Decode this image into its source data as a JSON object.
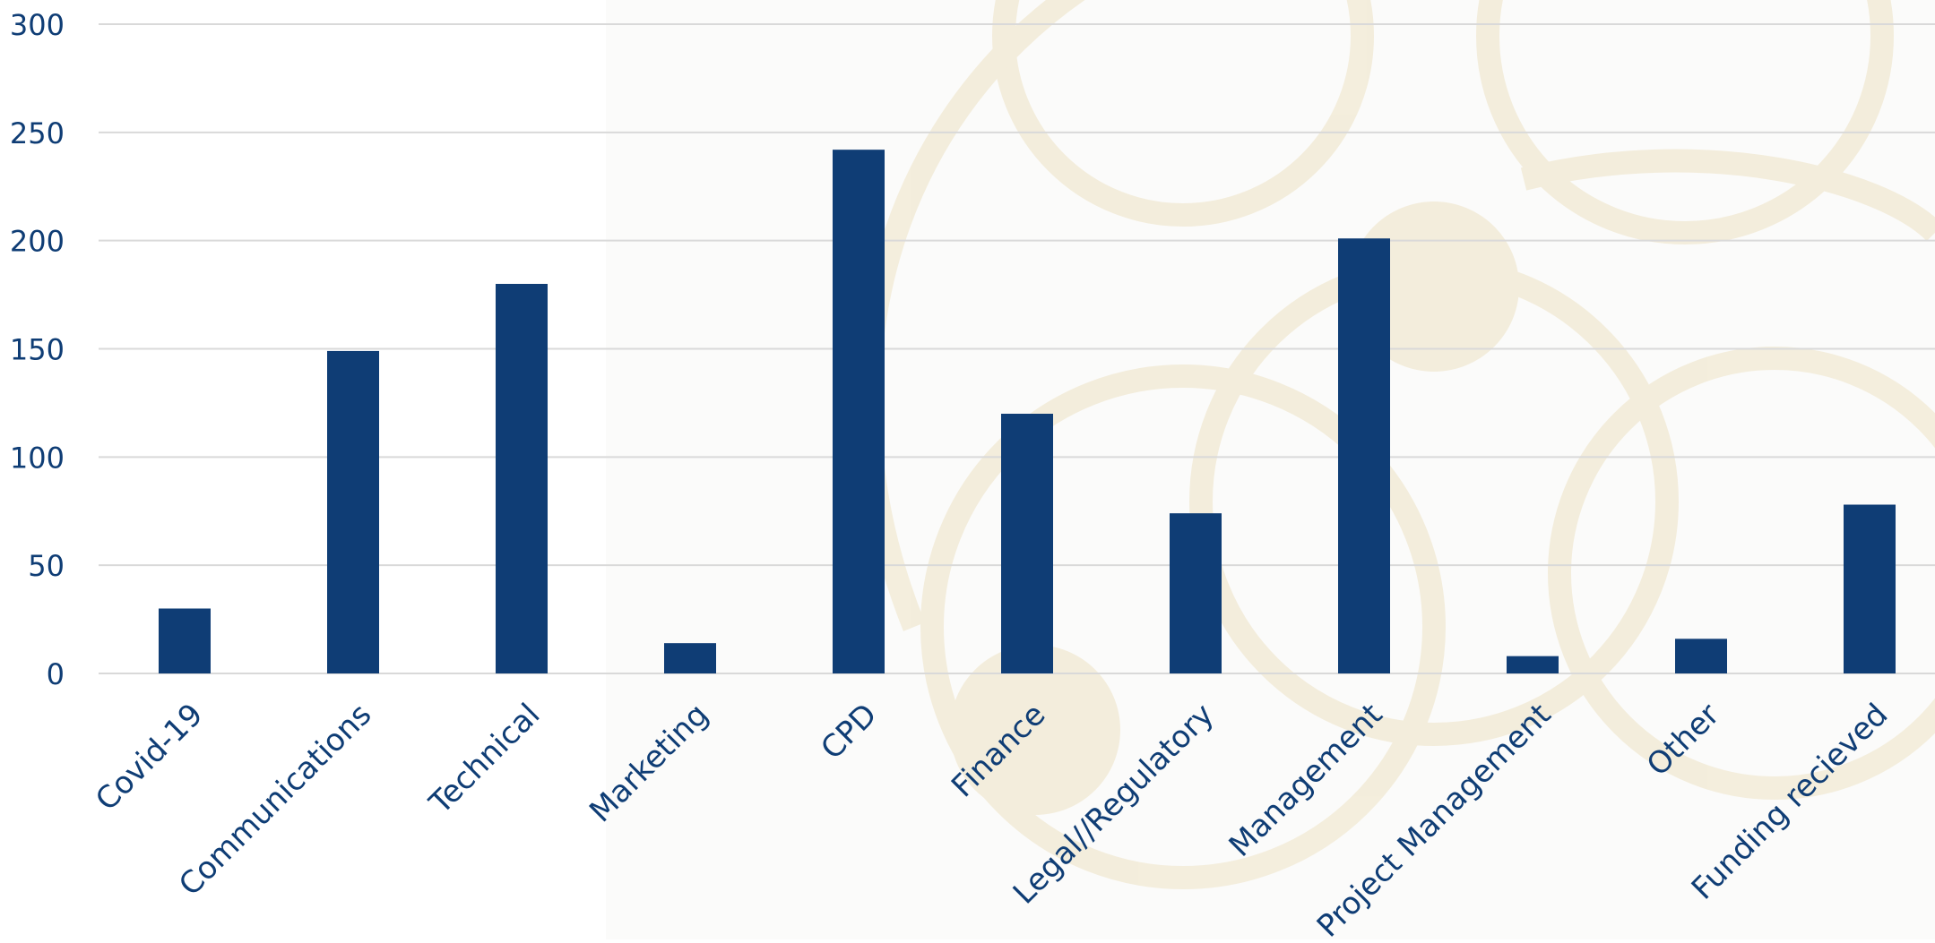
{
  "chart_data": {
    "type": "bar",
    "title": "",
    "xlabel": "",
    "ylabel": "",
    "categories": [
      "Covid-19",
      "Communications",
      "Technical",
      "Marketing",
      "CPD",
      "Finance",
      "Legal//Regulatory",
      "Management",
      "Project Management",
      "Other",
      "Funding recieved"
    ],
    "values": [
      30,
      149,
      180,
      14,
      242,
      120,
      74,
      201,
      8,
      16,
      78
    ],
    "ylim": [
      0,
      300
    ],
    "yticks": [
      "0",
      "50",
      "100",
      "150",
      "200",
      "250",
      "300"
    ],
    "grid": true,
    "colors": {
      "bar": "#0f3d75",
      "text": "#0f3d75",
      "grid": "#d9d9d9",
      "background": "#ffffff",
      "panel": "#fbfbfa",
      "watermark": "#f3ecd9"
    }
  }
}
